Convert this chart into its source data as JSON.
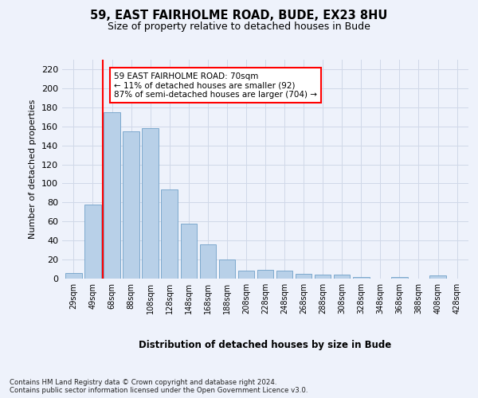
{
  "title1": "59, EAST FAIRHOLME ROAD, BUDE, EX23 8HU",
  "title2": "Size of property relative to detached houses in Bude",
  "xlabel": "Distribution of detached houses by size in Bude",
  "ylabel": "Number of detached properties",
  "footer": "Contains HM Land Registry data © Crown copyright and database right 2024.\nContains public sector information licensed under the Open Government Licence v3.0.",
  "categories": [
    "29sqm",
    "49sqm",
    "68sqm",
    "88sqm",
    "108sqm",
    "128sqm",
    "148sqm",
    "168sqm",
    "188sqm",
    "208sqm",
    "228sqm",
    "248sqm",
    "268sqm",
    "288sqm",
    "308sqm",
    "328sqm",
    "348sqm",
    "368sqm",
    "388sqm",
    "408sqm",
    "428sqm"
  ],
  "values": [
    6,
    78,
    175,
    155,
    158,
    94,
    58,
    36,
    20,
    8,
    9,
    8,
    5,
    4,
    4,
    2,
    0,
    2,
    0,
    3,
    0
  ],
  "bar_color": "#b8d0e8",
  "bar_edge_color": "#6fa0c8",
  "grid_color": "#d0d8e8",
  "vline_x": 1.5,
  "vline_color": "red",
  "annotation_text": "59 EAST FAIRHOLME ROAD: 70sqm\n← 11% of detached houses are smaller (92)\n87% of semi-detached houses are larger (704) →",
  "annotation_box_color": "white",
  "annotation_box_edge": "red",
  "ylim": [
    0,
    230
  ],
  "yticks": [
    0,
    20,
    40,
    60,
    80,
    100,
    120,
    140,
    160,
    180,
    200,
    220
  ],
  "bg_color": "#eef2fb"
}
